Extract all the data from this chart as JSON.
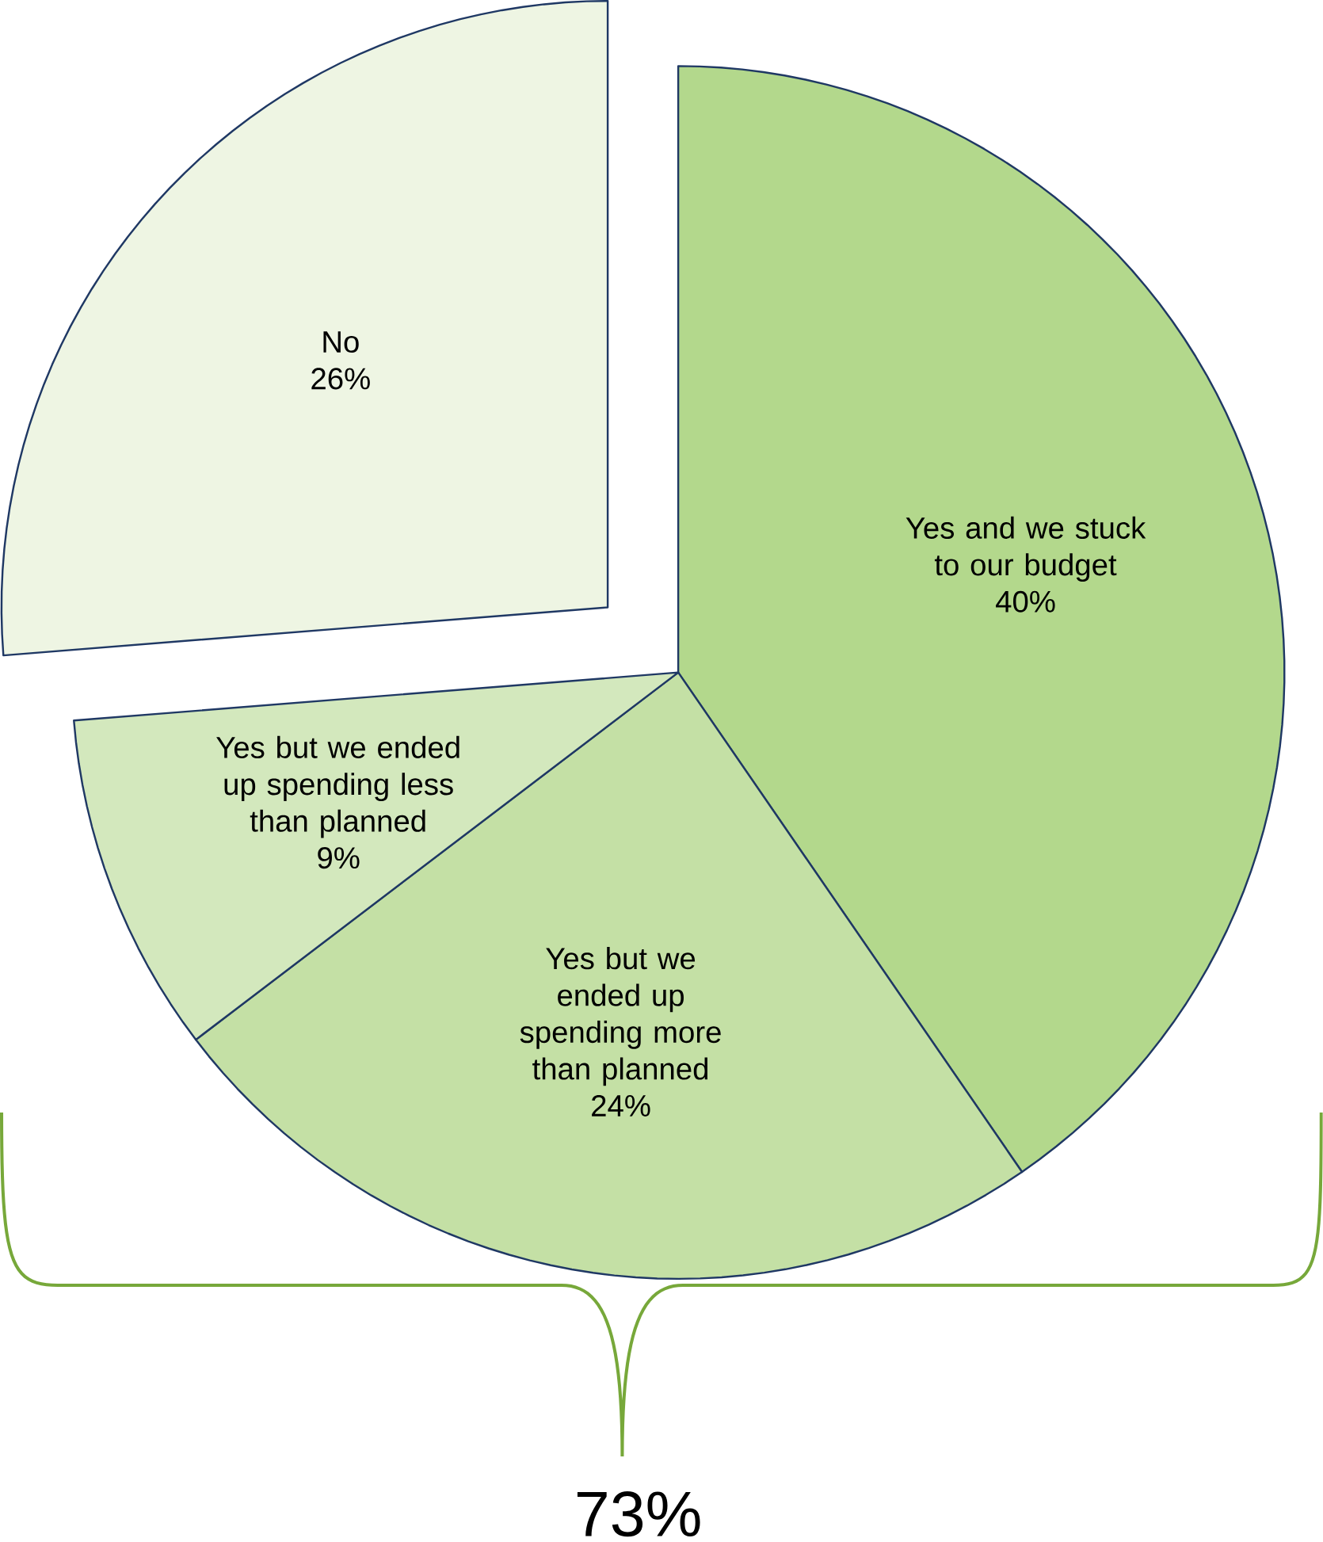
{
  "chart_data": {
    "type": "pie",
    "categories": [
      "Yes and we stuck to our budget",
      "Yes but we ended up spending more than planned",
      "Yes but we ended up spending less than planned",
      "No"
    ],
    "values": [
      40,
      24,
      9,
      26
    ],
    "value_labels": [
      "40%",
      "24%",
      "9%",
      "26%"
    ],
    "colors": [
      "#b3d88c",
      "#c4e0a5",
      "#d3e8bd",
      "#eef5e3"
    ],
    "annotations": [
      "73%"
    ]
  }
}
